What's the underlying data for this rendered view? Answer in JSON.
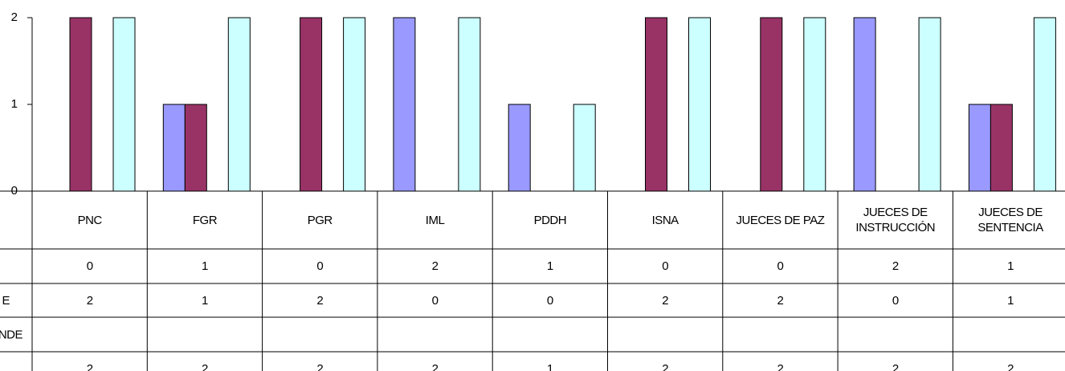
{
  "chart_data": {
    "type": "bar",
    "categories": [
      "PNC",
      "FGR",
      "PGR",
      "IML",
      "PDDH",
      "ISNA",
      "JUECES DE PAZ",
      "JUECES DE INSTRUCCIÓN",
      "JUECES DE SENTENCIA"
    ],
    "series": [
      {
        "name": null,
        "color": "#9999ff",
        "values": [
          0,
          1,
          0,
          2,
          1,
          0,
          0,
          2,
          1
        ]
      },
      {
        "name": "E",
        "color": "#993366",
        "values": [
          2,
          1,
          2,
          0,
          0,
          2,
          2,
          0,
          1
        ]
      },
      {
        "name": "NDE",
        "color": "#ccccff",
        "values": [
          null,
          null,
          null,
          null,
          null,
          null,
          null,
          null,
          null
        ]
      },
      {
        "name": null,
        "color": "#ccffff",
        "values": [
          2,
          2,
          2,
          2,
          1,
          2,
          2,
          2,
          2
        ]
      }
    ],
    "ylim": [
      0,
      2
    ],
    "yticks": [
      0,
      1,
      2
    ]
  }
}
